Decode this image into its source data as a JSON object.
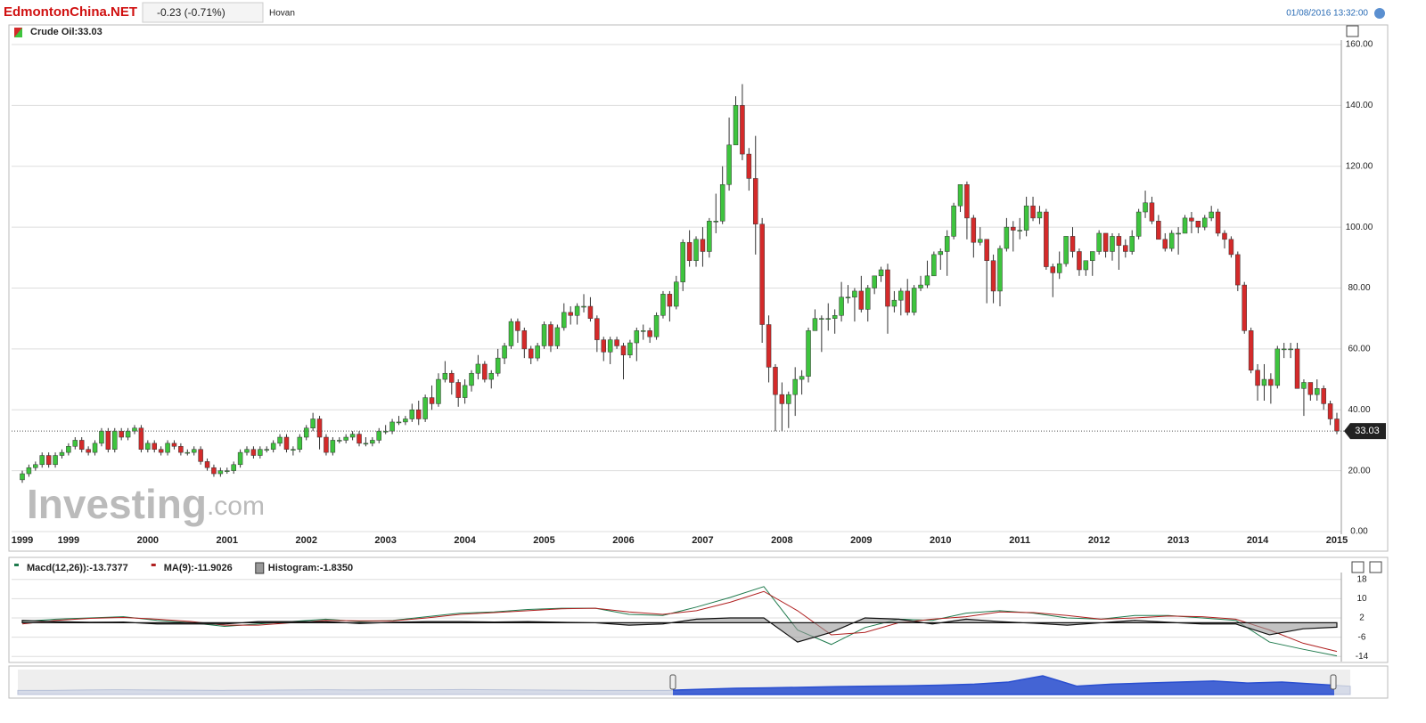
{
  "header": {
    "logo": "EdmontonChina.NET",
    "change": "-0.23 (-0.71%)",
    "tab": "Hovan",
    "timestamp": "01/08/2016 13:32:00"
  },
  "chart_data": [
    {
      "type": "candlestick",
      "legend": "Crude Oil:33.03",
      "watermark": "Investing",
      "watermark_suffix": ".com",
      "last_label": "33.03",
      "up_color": "#3ec43e",
      "down_color": "#d42a2a",
      "grid": true,
      "ylim": [
        0,
        160
      ],
      "yticks": [
        {
          "value": 0,
          "label": "0.00"
        },
        {
          "value": 20,
          "label": "20.00"
        },
        {
          "value": 40,
          "label": "40.00"
        },
        {
          "value": 60,
          "label": "60.00"
        },
        {
          "value": 80,
          "label": "80.00"
        },
        {
          "value": 100,
          "label": "100.00"
        },
        {
          "value": 120,
          "label": "120.00"
        },
        {
          "value": 140,
          "label": "140.00"
        },
        {
          "value": 160,
          "label": "160.00"
        }
      ],
      "categories": [
        "1999",
        null,
        null,
        null,
        null,
        null,
        null,
        "1999",
        null,
        null,
        null,
        null,
        null,
        null,
        null,
        null,
        null,
        null,
        null,
        "2000",
        null,
        null,
        null,
        null,
        null,
        null,
        null,
        null,
        null,
        null,
        null,
        "2001",
        null,
        null,
        null,
        null,
        null,
        null,
        null,
        null,
        null,
        null,
        null,
        "2002",
        null,
        null,
        null,
        null,
        null,
        null,
        null,
        null,
        null,
        null,
        null,
        "2003",
        null,
        null,
        null,
        null,
        null,
        null,
        null,
        null,
        null,
        null,
        null,
        "2004",
        null,
        null,
        null,
        null,
        null,
        null,
        null,
        null,
        null,
        null,
        null,
        "2005",
        null,
        null,
        null,
        null,
        null,
        null,
        null,
        null,
        null,
        null,
        null,
        "2006",
        null,
        null,
        null,
        null,
        null,
        null,
        null,
        null,
        null,
        null,
        null,
        "2007",
        null,
        null,
        null,
        null,
        null,
        null,
        null,
        null,
        null,
        null,
        null,
        "2008",
        null,
        null,
        null,
        null,
        null,
        null,
        null,
        null,
        null,
        null,
        null,
        "2009",
        null,
        null,
        null,
        null,
        null,
        null,
        null,
        null,
        null,
        null,
        null,
        "2010",
        null,
        null,
        null,
        null,
        null,
        null,
        null,
        null,
        null,
        null,
        null,
        "2011",
        null,
        null,
        null,
        null,
        null,
        null,
        null,
        null,
        null,
        null,
        null,
        "2012",
        null,
        null,
        null,
        null,
        null,
        null,
        null,
        null,
        null,
        null,
        null,
        "2013",
        null,
        null,
        null,
        null,
        null,
        null,
        null,
        null,
        null,
        null,
        null,
        "2014",
        null,
        null,
        null,
        null,
        null,
        null,
        null,
        null,
        null,
        null,
        null,
        "2015"
      ],
      "open": [
        17,
        19,
        21,
        22,
        25,
        22,
        25,
        26,
        28,
        30,
        27,
        26,
        29,
        33,
        27,
        33,
        31,
        33,
        34,
        27,
        29,
        27,
        26,
        29,
        28,
        26,
        26,
        27,
        23,
        21,
        19,
        20,
        20,
        22,
        26,
        27,
        25,
        27,
        27,
        29,
        31,
        27,
        27,
        31,
        34,
        37,
        31,
        26,
        30,
        30,
        31,
        32,
        29,
        29,
        30,
        33,
        33,
        36,
        36,
        37,
        40,
        37,
        44,
        42,
        50,
        52,
        49,
        44,
        48,
        52,
        55,
        50,
        52,
        57,
        61,
        69,
        66,
        60,
        57,
        61,
        68,
        61,
        67,
        72,
        71,
        74,
        74,
        70,
        63,
        59,
        63,
        61,
        58,
        62,
        66,
        66,
        64,
        71,
        78,
        74,
        82,
        95,
        89,
        96,
        92,
        102,
        102,
        114,
        127,
        140,
        124,
        116,
        101,
        68,
        54,
        45,
        42,
        45,
        50,
        51,
        66,
        70,
        70,
        70,
        71,
        77,
        77,
        79,
        73,
        80,
        84,
        86,
        74,
        76,
        79,
        72,
        80,
        81,
        84,
        91,
        92,
        97,
        107,
        114,
        103,
        95,
        96,
        89,
        79,
        93,
        100,
        99,
        99,
        107,
        103,
        105,
        87,
        85,
        88,
        97,
        92,
        86,
        89,
        92,
        98,
        92,
        97,
        94,
        92,
        97,
        105,
        108,
        102,
        96,
        93,
        98,
        98,
        103,
        102,
        100,
        103,
        105,
        98,
        96,
        91,
        81,
        66,
        53,
        48,
        50,
        48,
        60,
        60,
        60,
        47,
        49,
        45,
        47,
        42,
        37
      ],
      "high": [
        20,
        22,
        23,
        26,
        26,
        26,
        27,
        29,
        31,
        31,
        28,
        30,
        34,
        34,
        34,
        34,
        34,
        35,
        35,
        30,
        30,
        28,
        30,
        30,
        29,
        27,
        28,
        28,
        24,
        22,
        21,
        21,
        23,
        27,
        28,
        28,
        28,
        28,
        30,
        32,
        32,
        28,
        32,
        35,
        39,
        38,
        32,
        31,
        31,
        32,
        33,
        33,
        31,
        31,
        34,
        35,
        37,
        38,
        38,
        42,
        43,
        45,
        48,
        52,
        56,
        53,
        50,
        50,
        53,
        58,
        56,
        53,
        60,
        62,
        70,
        70,
        67,
        61,
        62,
        69,
        69,
        68,
        75,
        74,
        75,
        78,
        77,
        71,
        64,
        64,
        64,
        62,
        63,
        67,
        68,
        67,
        72,
        79,
        79,
        84,
        96,
        99,
        97,
        100,
        103,
        111,
        120,
        136,
        143,
        147,
        126,
        130,
        103,
        71,
        55,
        49,
        46,
        54,
        53,
        67,
        73,
        71,
        75,
        73,
        82,
        81,
        80,
        84,
        81,
        84,
        87,
        88,
        79,
        80,
        83,
        81,
        84,
        89,
        92,
        93,
        99,
        108,
        114,
        115,
        104,
        100,
        95,
        91,
        94,
        103,
        102,
        103,
        110,
        110,
        107,
        106,
        88,
        92,
        97,
        100,
        93,
        89,
        92,
        99,
        98,
        98,
        98,
        96,
        99,
        106,
        112,
        110,
        104,
        98,
        99,
        100,
        104,
        105,
        102,
        104,
        107,
        106,
        99,
        97,
        92,
        82,
        67,
        55,
        55,
        52,
        61,
        62,
        62,
        62,
        50,
        49,
        50,
        48,
        43,
        39
      ],
      "low": [
        16,
        18,
        20,
        21,
        21,
        21,
        24,
        25,
        27,
        26,
        25,
        25,
        28,
        26,
        26,
        30,
        30,
        32,
        26,
        26,
        26,
        25,
        25,
        27,
        25,
        25,
        25,
        22,
        20,
        18,
        18,
        19,
        19,
        21,
        25,
        24,
        24,
        26,
        26,
        28,
        26,
        25,
        26,
        30,
        33,
        27,
        25,
        25,
        29,
        29,
        30,
        28,
        28,
        28,
        29,
        32,
        32,
        35,
        35,
        36,
        35,
        36,
        40,
        41,
        49,
        45,
        41,
        42,
        46,
        50,
        49,
        47,
        51,
        55,
        60,
        62,
        57,
        55,
        56,
        60,
        59,
        60,
        66,
        68,
        68,
        72,
        69,
        59,
        56,
        55,
        60,
        50,
        57,
        56,
        63,
        62,
        63,
        70,
        69,
        73,
        79,
        87,
        87,
        87,
        90,
        98,
        101,
        112,
        127,
        122,
        112,
        91,
        62,
        49,
        33,
        33,
        34,
        38,
        45,
        49,
        66,
        59,
        66,
        65,
        69,
        75,
        69,
        72,
        69,
        78,
        82,
        65,
        72,
        71,
        71,
        71,
        79,
        80,
        84,
        86,
        84,
        96,
        105,
        96,
        90,
        94,
        75,
        75,
        74,
        92,
        92,
        96,
        97,
        102,
        101,
        86,
        77,
        83,
        87,
        90,
        84,
        84,
        84,
        91,
        90,
        89,
        86,
        90,
        91,
        96,
        103,
        101,
        96,
        92,
        92,
        91,
        98,
        98,
        98,
        99,
        102,
        97,
        93,
        90,
        79,
        65,
        52,
        43,
        43,
        42,
        47,
        57,
        57,
        47,
        38,
        43,
        43,
        40,
        35,
        32
      ],
      "close": [
        19,
        21,
        22,
        25,
        22,
        25,
        26,
        28,
        30,
        27,
        26,
        29,
        33,
        27,
        33,
        31,
        33,
        34,
        27,
        29,
        27,
        26,
        29,
        28,
        26,
        26,
        27,
        23,
        21,
        19,
        20,
        20,
        22,
        26,
        27,
        25,
        27,
        27,
        29,
        31,
        27,
        27,
        31,
        34,
        37,
        31,
        26,
        30,
        30,
        31,
        32,
        29,
        29,
        30,
        33,
        33,
        36,
        36,
        37,
        40,
        37,
        44,
        42,
        50,
        52,
        49,
        44,
        48,
        52,
        55,
        50,
        52,
        57,
        61,
        69,
        66,
        60,
        57,
        61,
        68,
        61,
        67,
        72,
        71,
        74,
        74,
        70,
        63,
        59,
        63,
        61,
        58,
        62,
        66,
        66,
        64,
        71,
        78,
        74,
        82,
        95,
        89,
        96,
        92,
        102,
        102,
        114,
        127,
        140,
        124,
        116,
        101,
        68,
        54,
        45,
        42,
        45,
        50,
        51,
        66,
        70,
        70,
        70,
        71,
        77,
        77,
        79,
        73,
        80,
        84,
        86,
        74,
        76,
        79,
        72,
        80,
        81,
        84,
        91,
        92,
        97,
        107,
        114,
        103,
        95,
        96,
        89,
        79,
        93,
        100,
        99,
        99,
        107,
        103,
        105,
        87,
        85,
        88,
        97,
        92,
        86,
        89,
        92,
        98,
        92,
        97,
        94,
        92,
        97,
        105,
        108,
        102,
        96,
        93,
        98,
        98,
        103,
        102,
        100,
        103,
        105,
        98,
        96,
        91,
        81,
        66,
        53,
        48,
        50,
        48,
        60,
        60,
        60,
        47,
        49,
        45,
        47,
        42,
        37,
        33.03
      ]
    },
    {
      "type": "line",
      "ylim": [
        -15,
        19
      ],
      "yticks": [
        18,
        10,
        2,
        -6,
        -14
      ],
      "grid": true,
      "categories": [
        null,
        null,
        null,
        null,
        null,
        null,
        null,
        null,
        null,
        null,
        null,
        null,
        null,
        null,
        null,
        null,
        null,
        null,
        null,
        null,
        null,
        null,
        null,
        null,
        null,
        null,
        null,
        null,
        null,
        null,
        null,
        null,
        null,
        null,
        null,
        null,
        null,
        null,
        null,
        null
      ],
      "series": [
        {
          "name": "Macd(12,26)):-13.7377",
          "color": "#1f7a4d",
          "values": [
            0.5,
            1.5,
            2,
            2.5,
            1,
            0,
            -1.5,
            -0.5,
            0.5,
            1.5,
            0.5,
            1,
            2.5,
            4,
            4.5,
            5.5,
            6,
            6,
            3.5,
            3,
            6.5,
            10.5,
            15,
            -3,
            -9,
            -2,
            1.5,
            1,
            4,
            5,
            4,
            2,
            1.5,
            3,
            3,
            2,
            1,
            -8,
            -11,
            -13.7377
          ]
        },
        {
          "name": "MA(9):-11.9026",
          "color": "#b02020",
          "values": [
            -0.5,
            1,
            1.8,
            2.2,
            1.5,
            0.5,
            -1,
            -1,
            0,
            1,
            0.8,
            0.8,
            2,
            3.5,
            4.2,
            5,
            5.8,
            6,
            4.5,
            3.5,
            5,
            8.5,
            13,
            5,
            -5,
            -4,
            0,
            1.5,
            2.5,
            4.5,
            4.2,
            3,
            1.5,
            2,
            2.8,
            2.5,
            1.5,
            -3,
            -8.5,
            -11.9026
          ]
        },
        {
          "name": "Histogram:-1.8350",
          "color": "#999999",
          "style": "area",
          "values": [
            1,
            0.5,
            0.2,
            0.3,
            -0.5,
            -0.5,
            -0.5,
            0.5,
            0.5,
            0.5,
            -0.3,
            0.2,
            0.5,
            0.5,
            0.3,
            0.5,
            0.2,
            0,
            -1,
            -0.5,
            1.5,
            2,
            2,
            -8,
            -4,
            2,
            1.5,
            -0.5,
            1.5,
            0.5,
            -0.2,
            -1,
            0,
            1,
            0.2,
            -0.5,
            -0.5,
            -5,
            -2.5,
            -1.835
          ]
        }
      ]
    },
    {
      "type": "area",
      "color": "#2a4fd0",
      "ylim": [
        0,
        12
      ],
      "categories": [
        null,
        null,
        null,
        null,
        null,
        null,
        null,
        null,
        null,
        null,
        null,
        null,
        null,
        null,
        null,
        null,
        null,
        null,
        null,
        null,
        null,
        null,
        null,
        null,
        null,
        null,
        null,
        null,
        null,
        null,
        null,
        null,
        null,
        null,
        null,
        null,
        null,
        null,
        null,
        null
      ],
      "values": [
        2,
        2,
        2.2,
        2.3,
        2.2,
        2.1,
        2,
        2.1,
        2.2,
        2.3,
        2.2,
        2.3,
        2.3,
        2.4,
        2.3,
        2.2,
        2.1,
        2,
        2,
        2,
        2.5,
        3,
        3.2,
        3.5,
        3.8,
        4,
        4.2,
        4.5,
        5,
        6,
        9,
        4,
        5,
        5.5,
        6,
        6.5,
        5.5,
        6,
        5,
        4
      ]
    }
  ]
}
